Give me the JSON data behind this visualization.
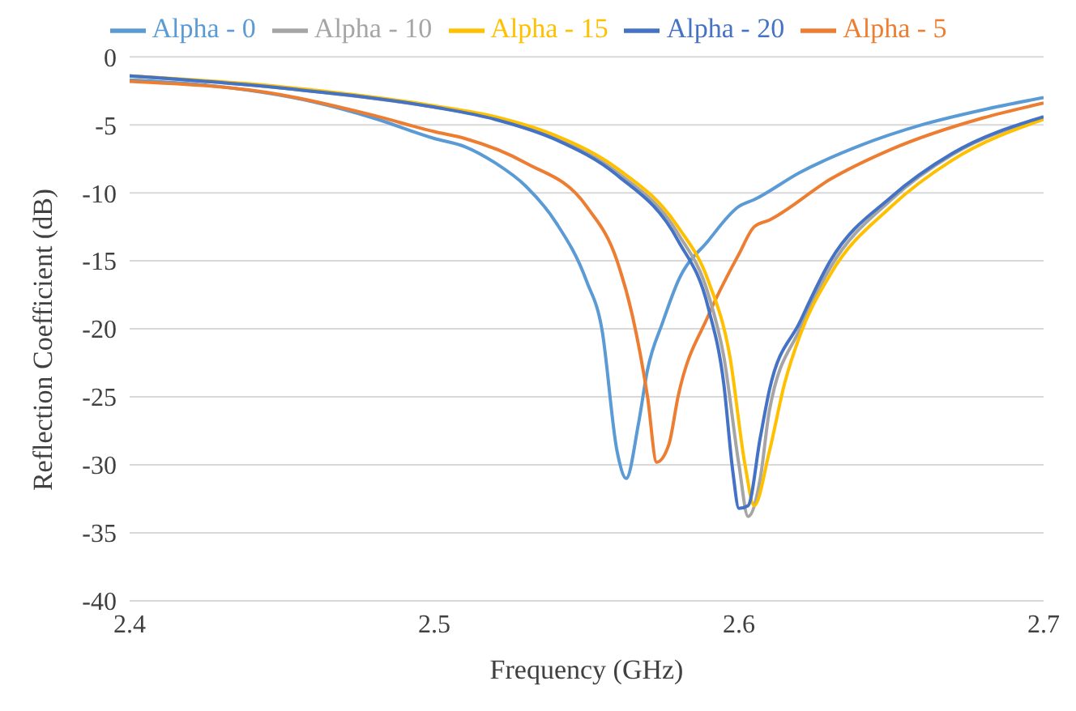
{
  "chart_data": {
    "type": "line",
    "xlabel": "Frequency (GHz)",
    "ylabel": "Reflection Coefficient (dB)",
    "xlim": [
      2.4,
      2.7
    ],
    "xticks": [
      2.4,
      2.5,
      2.6,
      2.7
    ],
    "ylim": [
      -40,
      0
    ],
    "yticks": [
      -40,
      -35,
      -30,
      -25,
      -20,
      -15,
      -10,
      -5,
      0
    ],
    "grid": "y",
    "legend": "top",
    "marker": "none",
    "line_style": "solid",
    "series": [
      {
        "name": "Alpha - 0",
        "color": "#5b9bd5",
        "x": [
          2.4,
          2.43,
          2.46,
          2.48,
          2.5,
          2.51,
          2.52,
          2.53,
          2.54,
          2.55,
          2.555,
          2.56,
          2.563,
          2.567,
          2.57,
          2.575,
          2.58,
          2.59,
          2.6,
          2.605,
          2.62,
          2.64,
          2.66,
          2.68,
          2.7
        ],
        "values": [
          -1.7,
          -2.2,
          -3.3,
          -4.5,
          -6,
          -6.6,
          -7.8,
          -9.5,
          -12.2,
          -16.5,
          -20,
          -29,
          -31,
          -27,
          -23,
          -19.5,
          -16.5,
          -13.5,
          -11,
          -10.5,
          -8.5,
          -6.5,
          -5,
          -3.9,
          -3
        ]
      },
      {
        "name": "Alpha - 5",
        "color": "#ed7d31",
        "x": [
          2.4,
          2.45,
          2.48,
          2.5,
          2.51,
          2.53,
          2.55,
          2.56,
          2.565,
          2.57,
          2.573,
          2.577,
          2.58,
          2.59,
          2.6,
          2.605,
          2.61,
          2.63,
          2.65,
          2.68,
          2.7
        ],
        "values": [
          -1.8,
          -2.8,
          -4.3,
          -5.5,
          -6,
          -7.8,
          -11,
          -15,
          -19,
          -25,
          -29.8,
          -28.5,
          -25,
          -19,
          -14.5,
          -12.5,
          -12,
          -9,
          -6.8,
          -4.5,
          -3.4
        ]
      },
      {
        "name": "Alpha - 10",
        "color": "#a5a5a5",
        "x": [
          2.4,
          2.45,
          2.5,
          2.52,
          2.54,
          2.56,
          2.58,
          2.59,
          2.595,
          2.6,
          2.603,
          2.607,
          2.61,
          2.62,
          2.63,
          2.65,
          2.67,
          2.7
        ],
        "values": [
          -1.4,
          -2.3,
          -3.7,
          -4.5,
          -6,
          -8.5,
          -13,
          -17.5,
          -22,
          -30,
          -33.8,
          -31,
          -26,
          -20,
          -15.5,
          -10.5,
          -7.2,
          -4.5
        ]
      },
      {
        "name": "Alpha - 15",
        "color": "#ffc000",
        "x": [
          2.4,
          2.45,
          2.5,
          2.52,
          2.54,
          2.56,
          2.58,
          2.59,
          2.597,
          2.602,
          2.605,
          2.61,
          2.615,
          2.62,
          2.63,
          2.65,
          2.67,
          2.7
        ],
        "values": [
          -1.4,
          -2.2,
          -3.6,
          -4.4,
          -5.8,
          -8.2,
          -12.5,
          -16.5,
          -22,
          -30,
          -33,
          -29,
          -24,
          -20.5,
          -16,
          -11,
          -7.6,
          -4.6
        ]
      },
      {
        "name": "Alpha - 20",
        "color": "#4472c4",
        "x": [
          2.4,
          2.45,
          2.5,
          2.52,
          2.54,
          2.56,
          2.58,
          2.59,
          2.595,
          2.598,
          2.6,
          2.603,
          2.607,
          2.61,
          2.62,
          2.63,
          2.65,
          2.67,
          2.7
        ],
        "values": [
          -1.4,
          -2.3,
          -3.7,
          -4.6,
          -6.1,
          -8.7,
          -13.5,
          -18.5,
          -24,
          -30.5,
          -33.2,
          -33,
          -28,
          -24.5,
          -19.5,
          -15,
          -10.3,
          -7.1,
          -4.4
        ]
      }
    ]
  }
}
